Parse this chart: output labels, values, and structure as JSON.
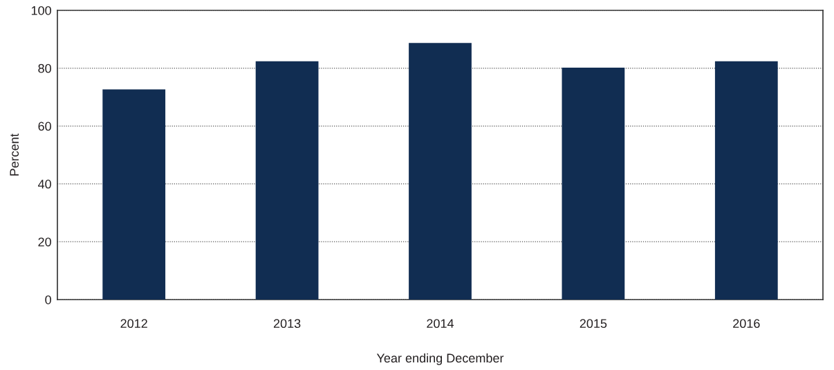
{
  "chart_data": {
    "type": "bar",
    "xlabel": "Year ending December",
    "ylabel": "Percent",
    "categories": [
      "2012",
      "2013",
      "2014",
      "2015",
      "2016"
    ],
    "values": [
      72.7,
      82.4,
      88.7,
      80.2,
      82.4
    ],
    "color": "#112d52",
    "ylim": [
      0,
      100
    ],
    "yticks": [
      0,
      20,
      40,
      60,
      80,
      100
    ],
    "grid": "y",
    "legend": false
  }
}
